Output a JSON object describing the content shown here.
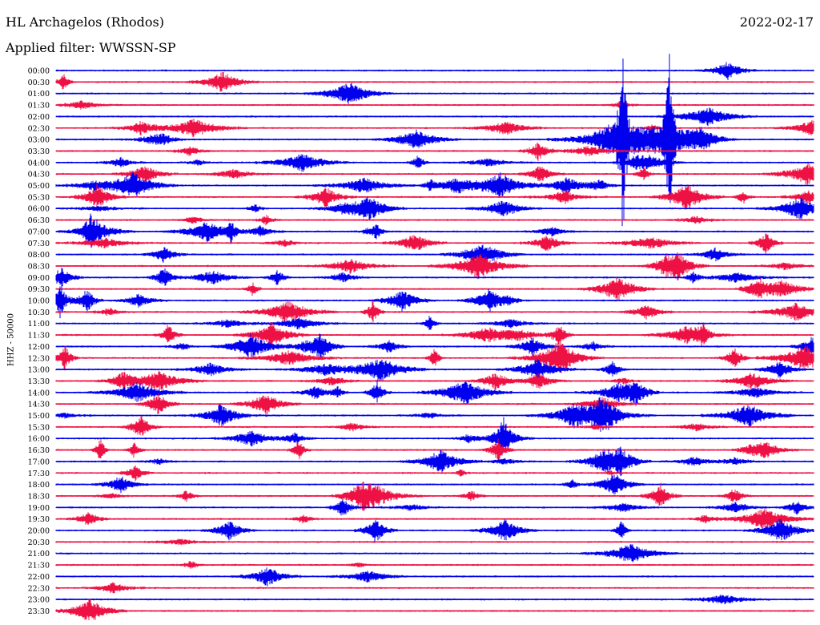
{
  "header": {
    "station": "HL Archagelos (Rhodos)",
    "filter": "Applied filter: WWSSN-SP",
    "date": "2022-02-17"
  },
  "chart_data": {
    "type": "line",
    "title": "HL Archagelos (Rhodos)",
    "subtitle": "Applied filter: WWSSN-SP",
    "date": "2022-02-17",
    "ylabel": "HHZ - 50000",
    "xlabel": "",
    "row_labels": [
      "00:00",
      "00:30",
      "01:00",
      "01:30",
      "02:00",
      "02:30",
      "03:00",
      "03:30",
      "04:00",
      "04:30",
      "05:00",
      "05:30",
      "06:00",
      "06:30",
      "07:00",
      "07:30",
      "08:00",
      "08:30",
      "09:00",
      "09:30",
      "10:00",
      "10:30",
      "11:00",
      "11:30",
      "12:00",
      "12:30",
      "13:00",
      "13:30",
      "14:00",
      "14:30",
      "15:00",
      "15:30",
      "16:00",
      "16:30",
      "17:00",
      "17:30",
      "18:00",
      "18:30",
      "19:00",
      "19:30",
      "20:00",
      "20:30",
      "21:00",
      "21:30",
      "22:00",
      "22:30",
      "23:00",
      "23:30"
    ],
    "row_minutes": 30,
    "series_colors": [
      "#0000ee",
      "#ee1144"
    ],
    "grid": false,
    "legend": "none"
  }
}
